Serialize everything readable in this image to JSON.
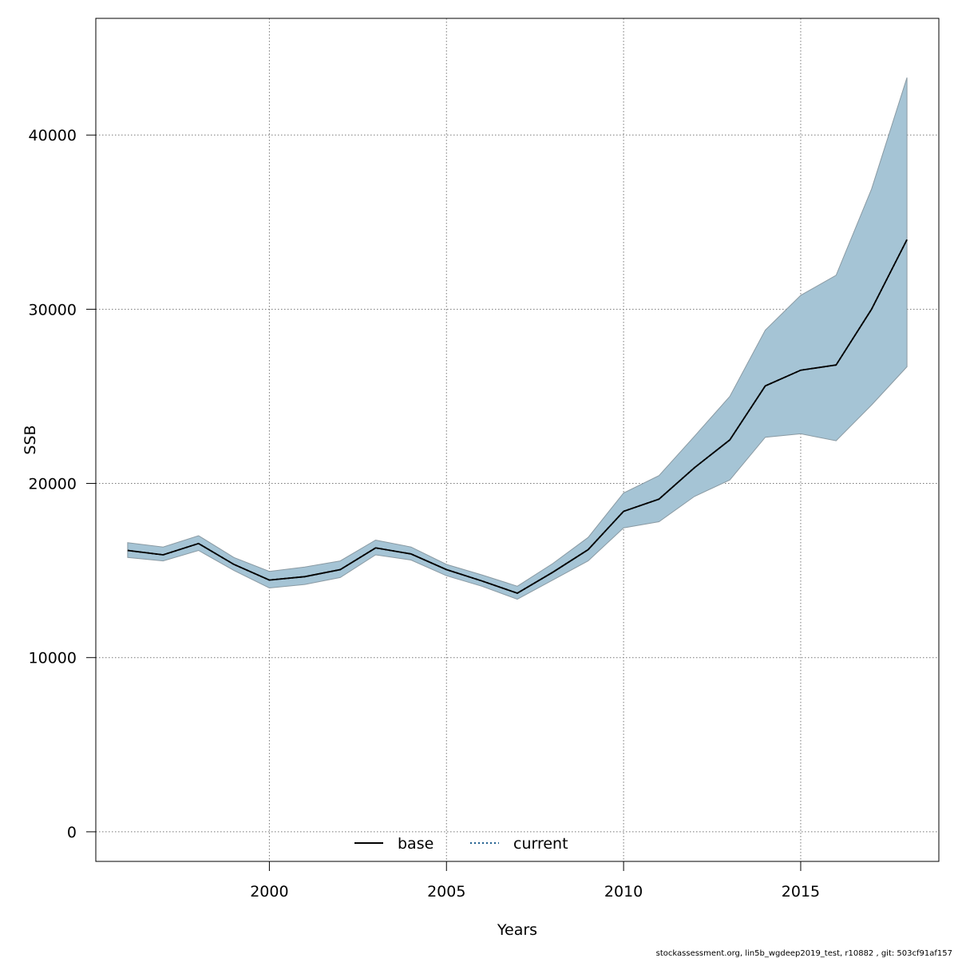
{
  "chart_data": {
    "type": "line",
    "title": "",
    "xlabel": "Years",
    "ylabel": "SSB",
    "xlim": [
      1995.1,
      2018.9
    ],
    "ylim": [
      -1700,
      46700
    ],
    "x_ticks": [
      2000,
      2005,
      2010,
      2015
    ],
    "y_ticks": [
      0,
      10000,
      20000,
      30000,
      40000
    ],
    "grid": true,
    "legend_position": "bottom",
    "colors": {
      "band_fill": "#a5c4d5",
      "band_stroke": "#8a9aa3",
      "base": "#000000",
      "current": "#000000",
      "legend_current": "#1f5f8f"
    },
    "x": [
      1996,
      1997,
      1998,
      1999,
      2000,
      2001,
      2002,
      2003,
      2004,
      2005,
      2006,
      2007,
      2008,
      2009,
      2010,
      2011,
      2012,
      2013,
      2014,
      2015,
      2016,
      2017,
      2018
    ],
    "series": [
      {
        "name": "current",
        "style": "dotted",
        "values": [
          16150,
          15900,
          16550,
          15350,
          14450,
          14650,
          15050,
          16300,
          15950,
          15050,
          14400,
          13700,
          14900,
          16200,
          18400,
          19100,
          20900,
          22500,
          25600,
          26500,
          26800,
          30000,
          34000
        ],
        "lower": [
          15750,
          15550,
          16150,
          15000,
          14000,
          14200,
          14600,
          15900,
          15600,
          14700,
          14100,
          13350,
          14450,
          15550,
          17450,
          17800,
          19250,
          20200,
          22650,
          22850,
          22450,
          24500,
          26700
        ],
        "upper": [
          16600,
          16350,
          17000,
          15750,
          14950,
          15200,
          15550,
          16750,
          16350,
          15350,
          14750,
          14100,
          15400,
          16900,
          19450,
          20450,
          22700,
          25000,
          28800,
          30800,
          31950,
          36900,
          43300
        ]
      },
      {
        "name": "base",
        "style": "solid",
        "values": [
          16150,
          15900,
          16550,
          15350,
          14450,
          14650,
          15050,
          16300,
          15950,
          15050,
          14400,
          13700,
          14900,
          16200,
          18400,
          19100,
          20900,
          22500,
          25600,
          26500,
          26800,
          30000,
          34000
        ]
      }
    ],
    "legend": [
      "base",
      "current"
    ]
  },
  "footer_text": "stockassessment.org, lin5b_wgdeep2019_test, r10882 , git: 503cf91af157"
}
